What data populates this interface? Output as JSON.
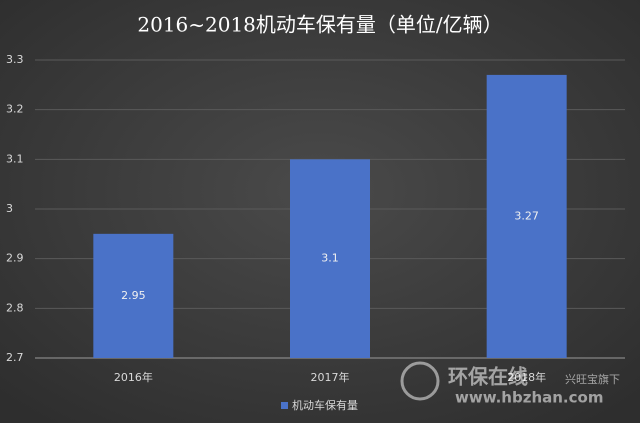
{
  "chart_data": {
    "type": "bar",
    "title": "2016~2018机动车保有量（单位/亿辆）",
    "categories": [
      "2016年",
      "2017年",
      "2018年"
    ],
    "series": [
      {
        "name": "机动车保有量",
        "color": "#4a72c8",
        "values": [
          2.95,
          3.1,
          3.27
        ]
      }
    ],
    "ylim": [
      2.7,
      3.3
    ],
    "yticks": [
      2.7,
      2.8,
      2.9,
      3,
      3.1,
      3.2,
      3.3
    ],
    "grid": true,
    "legend": "bottom",
    "watermark": [
      "环保在线",
      "www.hbzhan.com",
      "兴旺宝旗下"
    ]
  }
}
